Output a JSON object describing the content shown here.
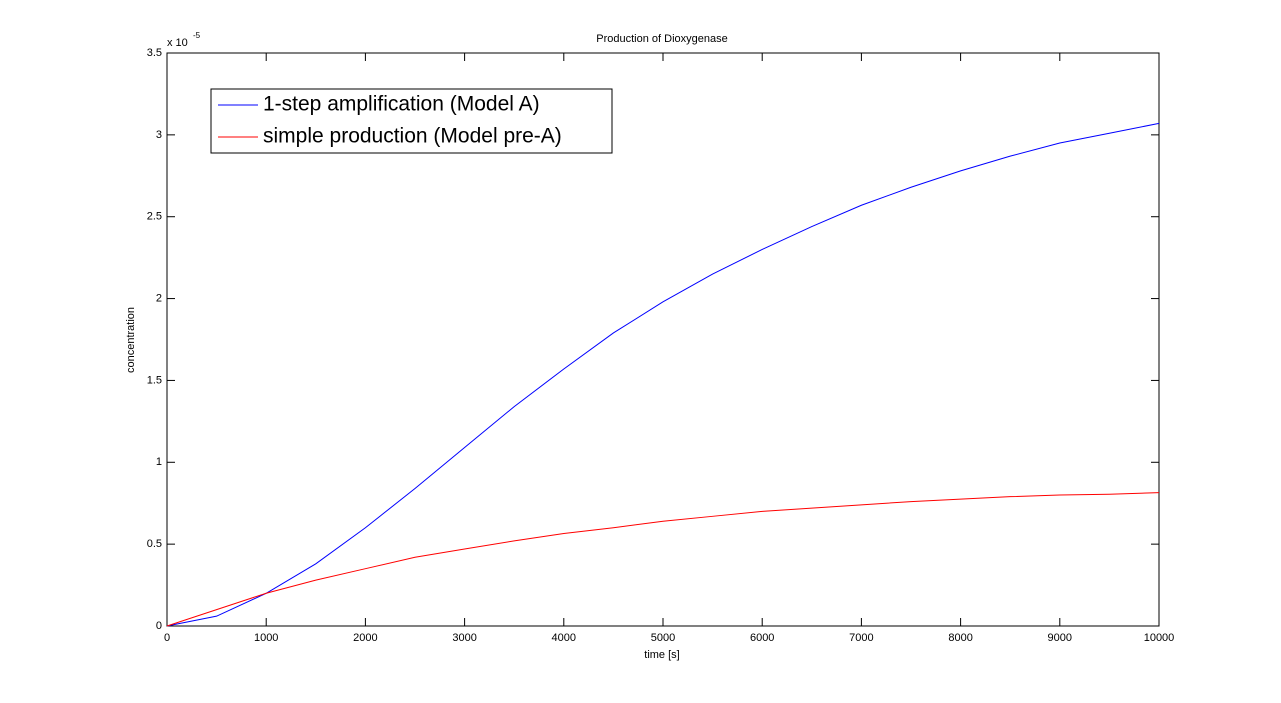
{
  "chart_data": {
    "type": "line",
    "title": "Production of Dioxygenase",
    "x_label": "time [s]",
    "y_label": "concentration",
    "y_multiplier": {
      "base": "x 10",
      "exponent": "-5"
    },
    "x": [
      0,
      500,
      1000,
      1500,
      2000,
      2500,
      3000,
      3500,
      4000,
      4500,
      5000,
      5500,
      6000,
      6500,
      7000,
      7500,
      8000,
      8500,
      9000,
      9500,
      10000
    ],
    "series": [
      {
        "name": "1-step amplification (Model A)",
        "color": "#0000ff",
        "values": [
          0,
          0.06,
          0.2,
          0.38,
          0.6,
          0.84,
          1.09,
          1.34,
          1.57,
          1.79,
          1.98,
          2.15,
          2.3,
          2.44,
          2.57,
          2.68,
          2.78,
          2.87,
          2.95,
          3.01,
          3.07
        ]
      },
      {
        "name": "simple production (Model pre-A)",
        "color": "#ff0000",
        "values": [
          0,
          0.1,
          0.2,
          0.28,
          0.35,
          0.42,
          0.47,
          0.52,
          0.565,
          0.6,
          0.64,
          0.67,
          0.7,
          0.72,
          0.74,
          0.76,
          0.775,
          0.79,
          0.8,
          0.805,
          0.815
        ]
      }
    ],
    "xlim": [
      0,
      10000
    ],
    "xticks": [
      0,
      1000,
      2000,
      3000,
      4000,
      5000,
      6000,
      7000,
      8000,
      9000,
      10000
    ],
    "ylim": [
      0,
      3.5
    ],
    "yticks": [
      0,
      0.5,
      1,
      1.5,
      2,
      2.5,
      3,
      3.5
    ],
    "grid": false,
    "legend_position": "upper-left"
  }
}
